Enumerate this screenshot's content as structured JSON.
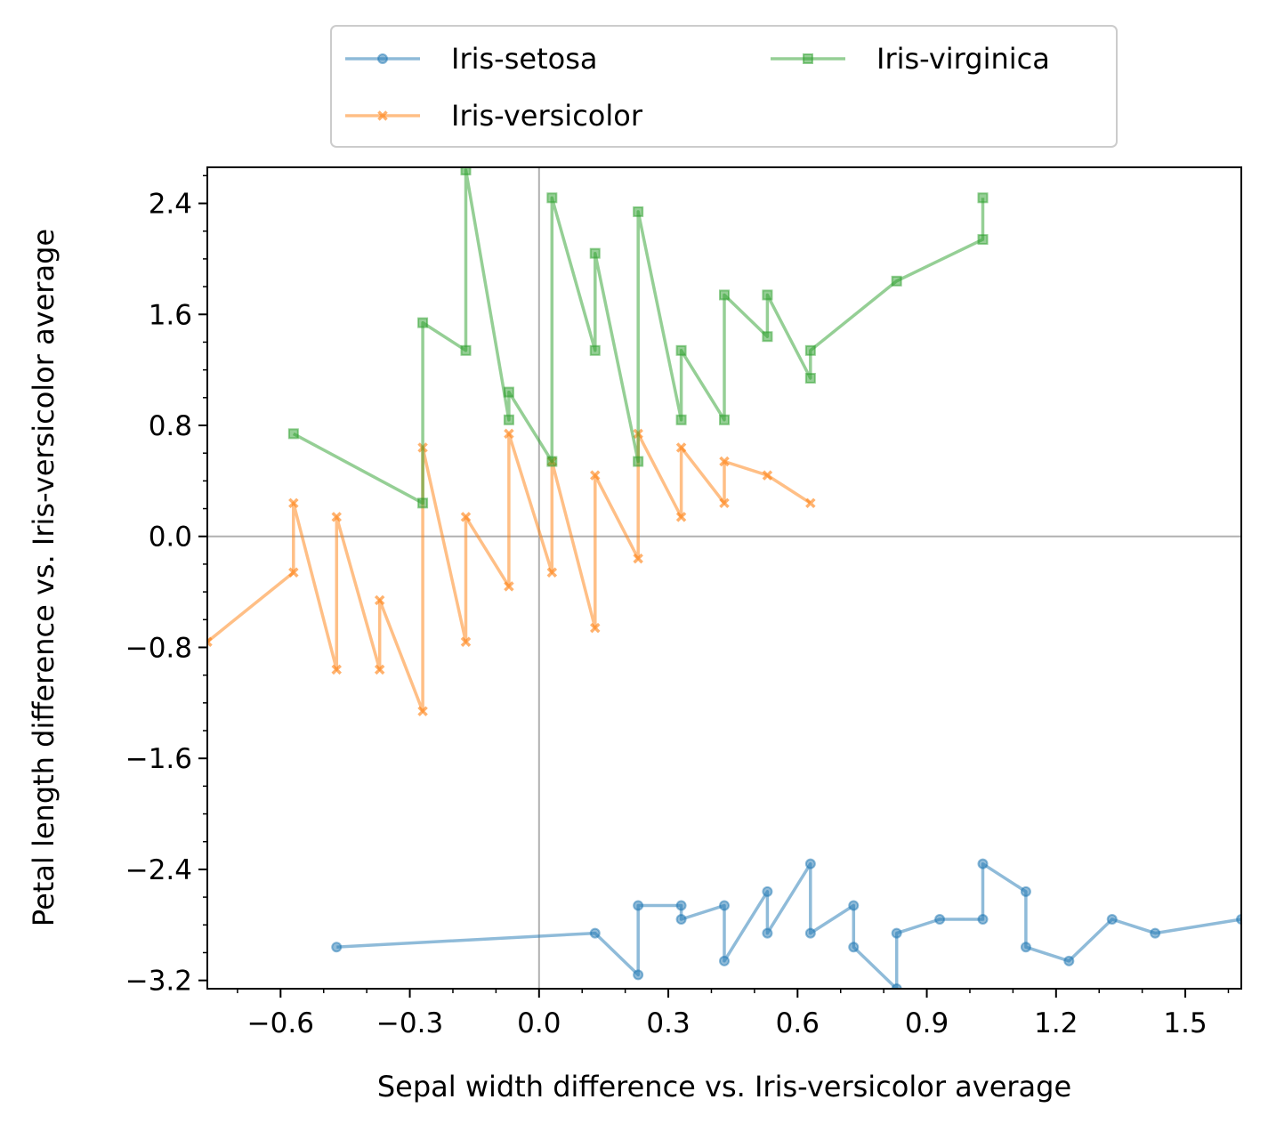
{
  "chart_data": {
    "type": "line",
    "xlabel": "Sepal width difference vs. Iris-versicolor average",
    "ylabel": "Petal length difference vs. Iris-versicolor average",
    "xlim": [
      -0.77,
      1.63
    ],
    "ylim": [
      -3.26,
      2.66
    ],
    "xticks": [
      -0.6,
      -0.3,
      0.0,
      0.3,
      0.6,
      0.9,
      1.2,
      1.5
    ],
    "xtick_labels": [
      "−0.6",
      "−0.3",
      "0.0",
      "0.3",
      "0.6",
      "0.9",
      "1.2",
      "1.5"
    ],
    "yticks": [
      -3.2,
      -2.4,
      -1.6,
      -0.8,
      0.0,
      0.8,
      1.6,
      2.4
    ],
    "ytick_labels": [
      "−3.2",
      "−2.4",
      "−1.6",
      "−0.8",
      "0.0",
      "0.8",
      "1.6",
      "2.4"
    ],
    "reference_lines": {
      "x": 0.0,
      "y": 0.0
    },
    "legend": {
      "placement": "top-center, above axes",
      "columns": 2
    },
    "series": [
      {
        "name": "Iris-setosa",
        "color": "#1f77b4",
        "marker": "circle",
        "points": [
          [
            -0.47,
            -2.96
          ],
          [
            0.13,
            -2.86
          ],
          [
            0.23,
            -3.16
          ],
          [
            0.23,
            -2.66
          ],
          [
            0.33,
            -2.66
          ],
          [
            0.33,
            -2.76
          ],
          [
            0.43,
            -2.66
          ],
          [
            0.43,
            -3.06
          ],
          [
            0.53,
            -2.56
          ],
          [
            0.53,
            -2.86
          ],
          [
            0.63,
            -2.36
          ],
          [
            0.63,
            -2.86
          ],
          [
            0.73,
            -2.66
          ],
          [
            0.73,
            -2.96
          ],
          [
            0.83,
            -3.26
          ],
          [
            0.83,
            -2.86
          ],
          [
            0.93,
            -2.76
          ],
          [
            1.03,
            -2.76
          ],
          [
            1.03,
            -2.36
          ],
          [
            1.13,
            -2.56
          ],
          [
            1.13,
            -2.96
          ],
          [
            1.23,
            -3.06
          ],
          [
            1.33,
            -2.76
          ],
          [
            1.43,
            -2.86
          ],
          [
            1.63,
            -2.76
          ]
        ]
      },
      {
        "name": "Iris-versicolor",
        "color": "#ff7f0e",
        "marker": "x",
        "points": [
          [
            -0.77,
            -0.76
          ],
          [
            -0.57,
            -0.26
          ],
          [
            -0.57,
            0.24
          ],
          [
            -0.47,
            -0.96
          ],
          [
            -0.47,
            0.14
          ],
          [
            -0.37,
            -0.96
          ],
          [
            -0.37,
            -0.46
          ],
          [
            -0.27,
            -1.26
          ],
          [
            -0.27,
            0.64
          ],
          [
            -0.17,
            -0.76
          ],
          [
            -0.17,
            0.14
          ],
          [
            -0.07,
            -0.36
          ],
          [
            -0.07,
            0.74
          ],
          [
            0.03,
            -0.26
          ],
          [
            0.03,
            0.54
          ],
          [
            0.13,
            -0.66
          ],
          [
            0.13,
            0.44
          ],
          [
            0.23,
            -0.16
          ],
          [
            0.23,
            0.74
          ],
          [
            0.33,
            0.14
          ],
          [
            0.33,
            0.64
          ],
          [
            0.43,
            0.24
          ],
          [
            0.43,
            0.54
          ],
          [
            0.53,
            0.44
          ],
          [
            0.63,
            0.24
          ]
        ]
      },
      {
        "name": "Iris-virginica",
        "color": "#2ca02c",
        "marker": "square",
        "points": [
          [
            -0.57,
            0.74
          ],
          [
            -0.27,
            0.24
          ],
          [
            -0.27,
            1.54
          ],
          [
            -0.17,
            1.34
          ],
          [
            -0.17,
            2.64
          ],
          [
            -0.07,
            0.84
          ],
          [
            -0.07,
            1.04
          ],
          [
            0.03,
            0.54
          ],
          [
            0.03,
            2.44
          ],
          [
            0.13,
            1.34
          ],
          [
            0.13,
            2.04
          ],
          [
            0.23,
            0.54
          ],
          [
            0.23,
            2.34
          ],
          [
            0.33,
            0.84
          ],
          [
            0.33,
            1.34
          ],
          [
            0.43,
            0.84
          ],
          [
            0.43,
            1.74
          ],
          [
            0.53,
            1.44
          ],
          [
            0.53,
            1.74
          ],
          [
            0.63,
            1.14
          ],
          [
            0.63,
            1.34
          ],
          [
            0.83,
            1.84
          ],
          [
            1.03,
            2.14
          ],
          [
            1.03,
            2.44
          ]
        ]
      }
    ]
  }
}
